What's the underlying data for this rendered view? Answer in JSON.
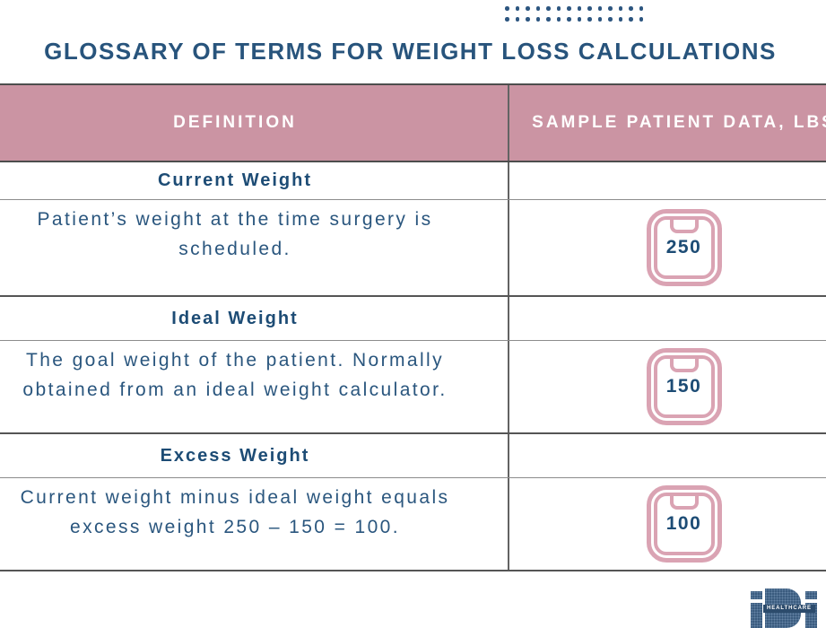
{
  "decoration": {
    "dot_rows": 2,
    "dots_per_row": 14
  },
  "title": "GLOSSARY OF TERMS FOR WEIGHT LOSS CALCULATIONS",
  "table": {
    "column_headers": {
      "definition": "DEFINITION",
      "sample": "SAMPLE PATIENT DATA, LBS"
    },
    "rows": [
      {
        "term": "Current Weight",
        "definition_lines": [
          "Patient’s weight at the time surgery is",
          "scheduled."
        ],
        "value": "250",
        "icon": "scale-icon"
      },
      {
        "term": "Ideal Weight",
        "definition_lines": [
          "The goal weight of the patient. Normally",
          "obtained from an ideal weight calculator."
        ],
        "value": "150",
        "icon": "scale-icon"
      },
      {
        "term": "Excess Weight",
        "definition_lines": [
          "Current weight minus ideal weight equals",
          "excess weight 250 – 150 = 100."
        ],
        "value": "100",
        "icon": "scale-icon"
      }
    ]
  },
  "logo": {
    "brand": "IBI",
    "label": "HEALTHCARE"
  },
  "colors": {
    "navy_text": "#28547c",
    "term_navy": "#1d4c75",
    "header_pink": "#cb94a3",
    "icon_pink": "#daa3b3",
    "header_text": "#ffffff",
    "logo_navy": "#3b5c7f"
  }
}
